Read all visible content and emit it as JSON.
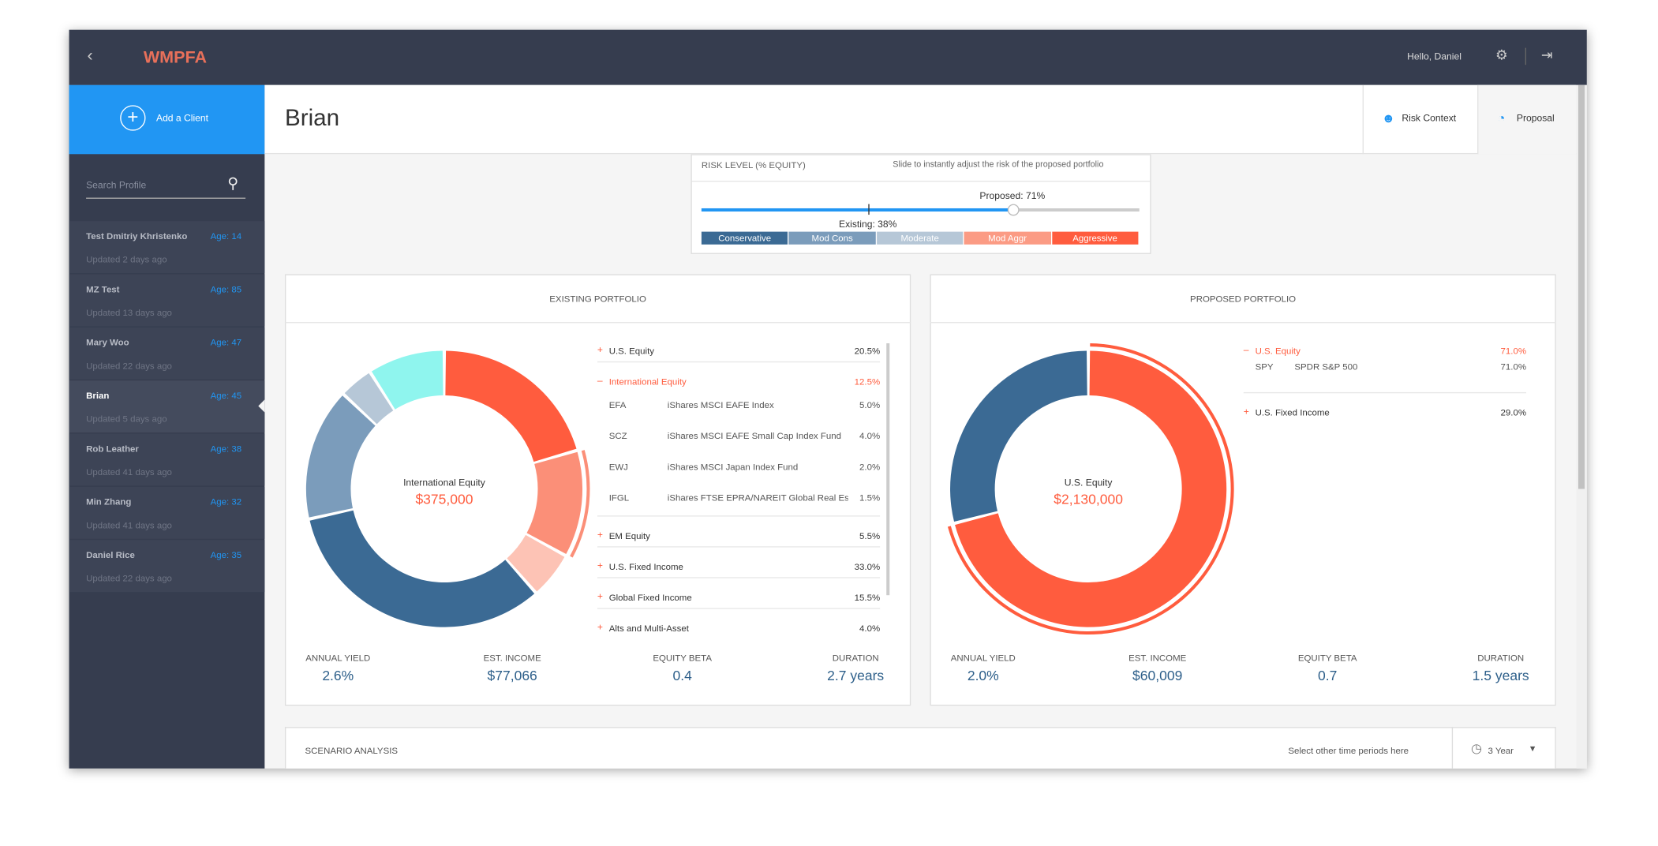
{
  "app": {
    "brand": "WMPFA",
    "greeting": "Hello, Daniel",
    "add_client": "Add a Client",
    "search_placeholder": "Search Profile"
  },
  "clients": [
    {
      "name": "Test Dmitriy Khristenko",
      "age": "Age: 14",
      "updated": "Updated 2 days ago"
    },
    {
      "name": "MZ Test",
      "age": "Age: 85",
      "updated": "Updated 13 days ago"
    },
    {
      "name": "Mary Woo",
      "age": "Age: 47",
      "updated": "Updated 22 days ago"
    },
    {
      "name": "Brian",
      "age": "Age: 45",
      "updated": "Updated 5 days ago"
    },
    {
      "name": "Rob Leather",
      "age": "Age: 38",
      "updated": "Updated 41 days ago"
    },
    {
      "name": "Min Zhang",
      "age": "Age: 32",
      "updated": "Updated 41 days ago"
    },
    {
      "name": "Daniel Rice",
      "age": "Age: 35",
      "updated": "Updated 22 days ago"
    }
  ],
  "client_name": "Brian",
  "tabs": [
    "Risk Context",
    "Proposal"
  ],
  "risk": {
    "title": "RISK LEVEL (% EQUITY)",
    "hint": "Slide to instantly adjust the risk of the proposed portfolio",
    "proposed": 71,
    "proposed_label": "Proposed: 71%",
    "existing": 38,
    "existing_label": "Existing: 38%",
    "levels": [
      "Conservative",
      "Mod Cons",
      "Moderate",
      "Mod Aggr",
      "Aggressive"
    ],
    "level_colors": [
      "#3b6a94",
      "#7b9cbb",
      "#b6c7d7",
      "#fb9b84",
      "#ff5c3e"
    ]
  },
  "existing_portfolio": {
    "title": "EXISTING PORTFOLIO",
    "center_label": "International Equity",
    "center_value": "$375,000",
    "chart_data": {
      "type": "donut",
      "categories": [
        "U.S. Equity",
        "International Equity",
        "EM Equity",
        "U.S. Fixed Income",
        "Global Fixed Income",
        "Alts and Multi-Asset"
      ],
      "values": [
        20.5,
        12.5,
        5.5,
        33.0,
        15.5,
        4.0
      ],
      "value_labels": [
        "20.5%",
        "12.5%",
        "5.5%",
        "33.0%",
        "15.5%",
        "4.0%"
      ],
      "colors": [
        "#ff5c3e",
        "#fb8f78",
        "#fdc3b5",
        "#3b6a94",
        "#7b9cbb",
        "#b6c7d7"
      ]
    },
    "funds": [
      {
        "ticker": "EFA",
        "name": "iShares MSCI EAFE Index",
        "weight": "5.0%"
      },
      {
        "ticker": "SCZ",
        "name": "iShares MSCI EAFE Small Cap Index Fund",
        "weight": "4.0%"
      },
      {
        "ticker": "EWJ",
        "name": "iShares MSCI Japan Index Fund",
        "weight": "2.0%"
      },
      {
        "ticker": "IFGL",
        "name": "iShares FTSE EPRA/NAREIT Global Real Estate",
        "weight": "1.5%"
      }
    ],
    "stats": [
      {
        "label": "ANNUAL YIELD",
        "value": "2.6%"
      },
      {
        "label": "EST. INCOME",
        "value": "$77,066"
      },
      {
        "label": "EQUITY BETA",
        "value": "0.4"
      },
      {
        "label": "DURATION",
        "value": "2.7 years"
      }
    ]
  },
  "proposed_portfolio": {
    "title": "PROPOSED PORTFOLIO",
    "center_label": "U.S. Equity",
    "center_value": "$2,130,000",
    "chart_data": {
      "type": "donut",
      "categories": [
        "U.S. Equity",
        "U.S. Fixed Income"
      ],
      "values": [
        71.0,
        29.0
      ],
      "value_labels": [
        "71.0%",
        "29.0%"
      ],
      "colors": [
        "#ff5c3e",
        "#3b6a94"
      ]
    },
    "funds": [
      {
        "ticker": "SPY",
        "name": "SPDR S&P 500",
        "weight": "71.0%"
      }
    ],
    "stats": [
      {
        "label": "ANNUAL YIELD",
        "value": "2.0%"
      },
      {
        "label": "EST. INCOME",
        "value": "$60,009"
      },
      {
        "label": "EQUITY BETA",
        "value": "0.7"
      },
      {
        "label": "DURATION",
        "value": "1.5 years"
      }
    ]
  },
  "scenario": {
    "title": "SCENARIO ANALYSIS",
    "hint": "Select other time periods here",
    "period": "3 Year"
  }
}
